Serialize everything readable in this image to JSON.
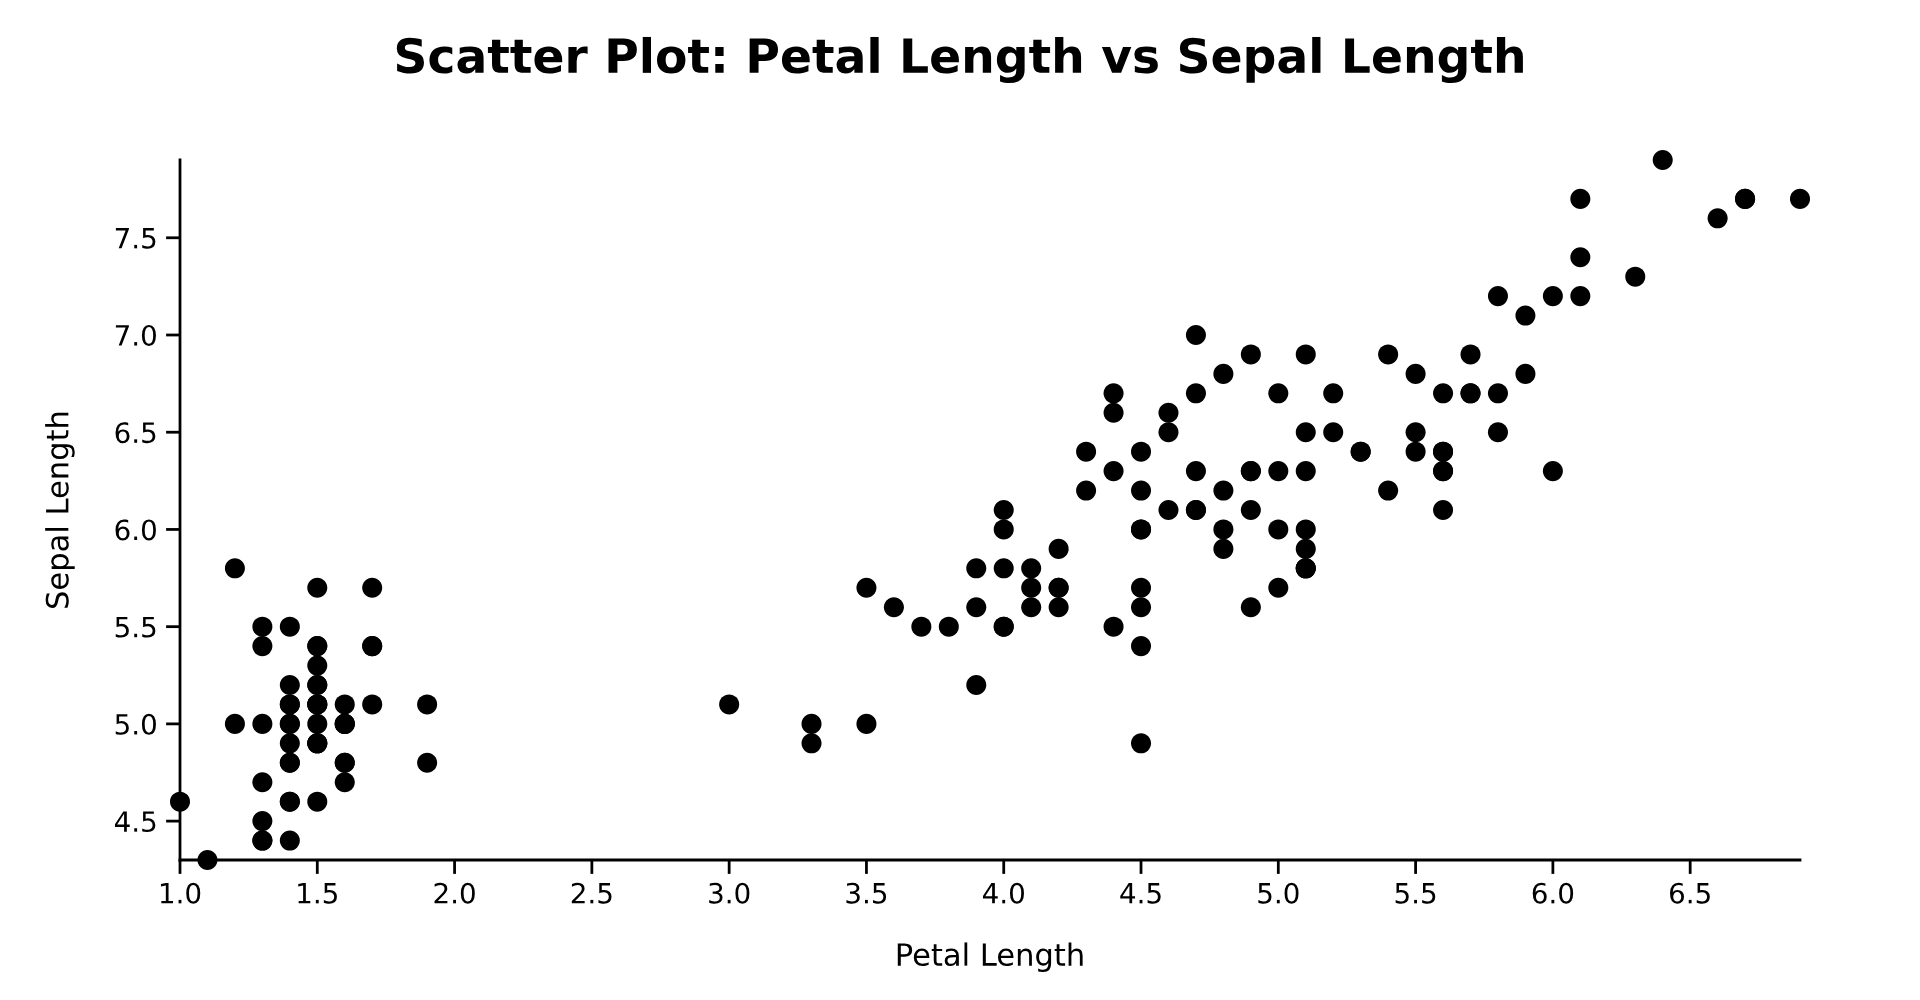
{
  "chart_data": {
    "type": "scatter",
    "title": "Scatter Plot: Petal Length vs Sepal Length",
    "xlabel": "Petal Length",
    "ylabel": "Sepal Length",
    "x": [
      1.4,
      1.4,
      1.3,
      1.5,
      1.4,
      1.7,
      1.4,
      1.5,
      1.4,
      1.5,
      1.5,
      1.6,
      1.4,
      1.1,
      1.2,
      1.5,
      1.3,
      1.4,
      1.7,
      1.5,
      1.7,
      1.5,
      1.0,
      1.7,
      1.9,
      1.6,
      1.6,
      1.5,
      1.4,
      1.6,
      1.6,
      1.5,
      1.5,
      1.4,
      1.5,
      1.2,
      1.3,
      1.5,
      1.3,
      1.5,
      1.3,
      1.3,
      1.3,
      1.6,
      1.9,
      1.4,
      1.6,
      1.4,
      1.5,
      1.4,
      4.7,
      4.5,
      4.9,
      4.0,
      4.6,
      4.5,
      4.7,
      3.3,
      4.6,
      3.9,
      3.5,
      4.2,
      4.0,
      4.7,
      3.6,
      4.4,
      4.5,
      4.1,
      4.5,
      3.9,
      4.8,
      4.0,
      4.9,
      4.7,
      4.3,
      4.4,
      4.8,
      5.0,
      4.5,
      3.5,
      3.8,
      3.7,
      3.9,
      5.1,
      4.5,
      4.5,
      4.7,
      4.4,
      4.1,
      4.0,
      4.4,
      4.6,
      4.0,
      3.3,
      4.2,
      4.2,
      4.2,
      4.3,
      3.0,
      4.1,
      6.0,
      5.1,
      5.9,
      5.6,
      5.8,
      6.6,
      4.5,
      6.3,
      5.8,
      6.1,
      5.1,
      5.3,
      5.5,
      5.0,
      5.1,
      5.3,
      5.5,
      6.7,
      6.9,
      5.0,
      5.7,
      4.9,
      6.7,
      4.9,
      5.7,
      6.0,
      4.8,
      4.9,
      5.6,
      5.8,
      6.1,
      6.4,
      5.6,
      5.1,
      5.6,
      6.1,
      5.6,
      5.5,
      4.8,
      5.4,
      5.6,
      5.1,
      5.1,
      5.9,
      5.7,
      5.2,
      5.0,
      5.2,
      5.4,
      5.1
    ],
    "values": [
      5.1,
      4.9,
      4.7,
      4.6,
      5.0,
      5.4,
      4.6,
      5.0,
      4.4,
      4.9,
      5.4,
      4.8,
      4.8,
      4.3,
      5.8,
      5.7,
      5.4,
      5.1,
      5.7,
      5.1,
      5.4,
      5.1,
      4.6,
      5.1,
      4.8,
      5.0,
      5.0,
      5.2,
      5.2,
      4.7,
      4.8,
      5.4,
      5.2,
      5.5,
      4.9,
      5.0,
      5.5,
      4.9,
      4.4,
      5.1,
      5.0,
      4.5,
      4.4,
      5.0,
      5.1,
      4.8,
      5.1,
      4.6,
      5.3,
      5.0,
      7.0,
      6.4,
      6.9,
      5.5,
      6.5,
      5.7,
      6.3,
      4.9,
      6.6,
      5.2,
      5.0,
      5.9,
      6.0,
      6.1,
      5.6,
      6.7,
      5.6,
      5.8,
      6.2,
      5.6,
      5.9,
      6.1,
      6.3,
      6.1,
      6.4,
      6.6,
      6.8,
      6.7,
      6.0,
      5.7,
      5.5,
      5.5,
      5.8,
      6.0,
      5.4,
      6.0,
      6.7,
      6.3,
      5.6,
      5.5,
      5.5,
      6.1,
      5.8,
      5.0,
      5.6,
      5.7,
      5.7,
      6.2,
      5.1,
      5.7,
      6.3,
      5.8,
      7.1,
      6.3,
      6.5,
      7.6,
      4.9,
      7.3,
      6.7,
      7.2,
      6.5,
      6.4,
      6.8,
      5.7,
      5.8,
      6.4,
      6.5,
      7.7,
      7.7,
      6.0,
      6.9,
      5.6,
      7.7,
      6.3,
      6.7,
      7.2,
      6.2,
      6.1,
      6.4,
      7.2,
      7.4,
      7.9,
      6.4,
      6.3,
      6.1,
      7.7,
      6.3,
      6.4,
      6.0,
      6.9,
      6.7,
      6.9,
      5.8,
      6.8,
      6.7,
      6.7,
      6.3,
      6.5,
      6.2,
      5.9
    ],
    "color": "#000000",
    "marker": "circle",
    "xlim": [
      1.0,
      6.9
    ],
    "xticks": [
      {
        "value": 1,
        "label": "1.0"
      },
      1.5,
      {
        "value": 2,
        "label": "2.0"
      },
      2.5,
      {
        "value": 3,
        "label": "3.0"
      },
      3.5,
      {
        "value": 4,
        "label": "4.0"
      },
      4.5,
      {
        "value": 5,
        "label": "5.0"
      },
      5.5,
      {
        "value": 6,
        "label": "6.0"
      },
      6.5
    ],
    "ylim": [
      4.3,
      7.9
    ],
    "yticks": [
      4.5,
      {
        "value": 5,
        "label": "5.0"
      },
      5.5,
      {
        "value": 6,
        "label": "6.0"
      },
      6.5,
      {
        "value": 7,
        "label": "7.0"
      },
      7.5
    ]
  }
}
